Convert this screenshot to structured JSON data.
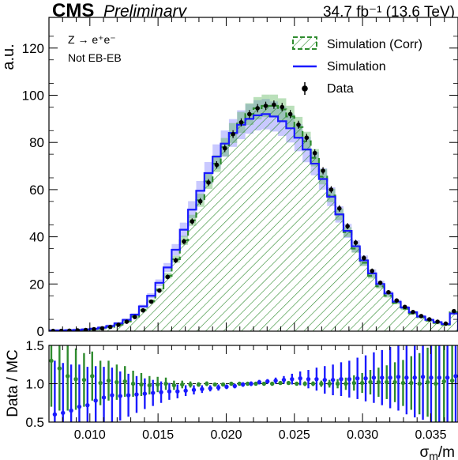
{
  "header": {
    "cms": "CMS",
    "preliminary": "Preliminary",
    "lumi": "34.7 fb⁻¹ (13.6 TeV)"
  },
  "annotations": {
    "process": "Z → e⁺e⁻",
    "category": "Not EB-EB"
  },
  "chart_data": [
    {
      "type": "histogram",
      "panel": "main",
      "ylabel": "a.u.",
      "xlabel": "",
      "xlim": [
        0.007,
        0.037
      ],
      "ylim": [
        0,
        133
      ],
      "yticks": [
        0,
        20,
        40,
        60,
        80,
        100,
        120
      ],
      "legend_position": "top-right",
      "bin_edges": [
        0.007,
        0.0076,
        0.0082,
        0.0088,
        0.0094,
        0.01,
        0.0106,
        0.0112,
        0.0118,
        0.0124,
        0.013,
        0.0136,
        0.0142,
        0.0148,
        0.0154,
        0.016,
        0.0166,
        0.0172,
        0.0178,
        0.0184,
        0.019,
        0.0196,
        0.0202,
        0.0208,
        0.0214,
        0.022,
        0.0226,
        0.0232,
        0.0238,
        0.0244,
        0.025,
        0.0256,
        0.0262,
        0.0268,
        0.0274,
        0.028,
        0.0286,
        0.0292,
        0.0298,
        0.0304,
        0.031,
        0.0316,
        0.0322,
        0.0328,
        0.0334,
        0.034,
        0.0346,
        0.0352,
        0.0358,
        0.0364,
        0.037
      ],
      "series": [
        {
          "name": "Simulation (Corr)",
          "style": "hatched",
          "color": "#2e8b2e",
          "values": [
            0.1,
            0.1,
            0.2,
            0.3,
            0.5,
            0.8,
            1.2,
            1.8,
            2.8,
            4.2,
            6.2,
            9.0,
            12.8,
            17.5,
            23.5,
            30.5,
            38.5,
            47.0,
            55.5,
            63.5,
            71.0,
            78.0,
            84.0,
            88.5,
            92.0,
            94.5,
            95.5,
            95.5,
            94.0,
            91.0,
            86.5,
            80.5,
            73.5,
            65.5,
            57.5,
            49.5,
            42.0,
            35.0,
            29.0,
            23.5,
            19.0,
            15.0,
            12.0,
            9.5,
            7.5,
            6.0,
            4.5,
            3.5,
            2.8,
            8.0
          ]
        },
        {
          "name": "Simulation",
          "style": "step",
          "color": "#1a1aff",
          "values": [
            0.3,
            0.3,
            0.4,
            0.5,
            0.7,
            1.0,
            1.5,
            2.2,
            3.3,
            4.8,
            7.0,
            10.5,
            15.0,
            20.5,
            27.0,
            34.5,
            43.0,
            51.5,
            59.5,
            67.0,
            74.0,
            79.5,
            84.0,
            87.5,
            90.0,
            91.5,
            92.0,
            91.0,
            89.0,
            86.0,
            82.0,
            77.0,
            71.0,
            64.5,
            57.0,
            49.5,
            42.5,
            36.0,
            30.0,
            24.5,
            20.0,
            16.0,
            12.5,
            10.0,
            8.0,
            6.2,
            4.8,
            3.8,
            3.0,
            7.5
          ]
        },
        {
          "name": "Data",
          "style": "points",
          "color": "#000000",
          "values": [
            0.1,
            0.1,
            0.2,
            0.3,
            0.5,
            0.8,
            1.2,
            1.8,
            2.7,
            4.0,
            6.0,
            8.8,
            12.5,
            17.2,
            23.0,
            30.0,
            38.0,
            46.5,
            55.0,
            63.0,
            70.5,
            77.5,
            83.5,
            88.5,
            92.0,
            94.5,
            95.5,
            96.0,
            95.0,
            92.0,
            87.5,
            82.0,
            75.5,
            68.0,
            60.0,
            52.0,
            44.5,
            37.5,
            31.0,
            25.5,
            20.5,
            16.5,
            13.0,
            10.3,
            8.1,
            6.4,
            5.0,
            4.0,
            3.2,
            8.5
          ]
        }
      ]
    },
    {
      "type": "ratio",
      "panel": "ratio",
      "ylabel": "Data / MC",
      "xlabel": "σm/m",
      "xlim": [
        0.007,
        0.037
      ],
      "ylim": [
        0.5,
        1.5
      ],
      "yticks": [
        0.5,
        1.0,
        1.5
      ],
      "xticks": [
        0.01,
        0.015,
        0.02,
        0.025,
        0.03,
        0.035
      ],
      "reference_line": 1.0,
      "series": [
        {
          "name": "Simulation (Corr)",
          "color": "#2e8b2e",
          "values": [
            1.3,
            1.2,
            1.1,
            1.06,
            1.05,
            1.1,
            1.01,
            1.04,
            1.02,
            1.03,
            1.0,
            0.99,
            0.98,
            0.99,
            1.0,
            0.98,
            0.99,
            0.99,
            0.99,
            1.0,
            0.99,
            0.99,
            1.0,
            1.0,
            1.0,
            1.0,
            1.0,
            1.0,
            1.01,
            1.01,
            1.0,
            1.0,
            1.0,
            1.0,
            1.0,
            1.0,
            1.0,
            1.01,
            1.01,
            1.02,
            1.02,
            1.02,
            1.02,
            1.01,
            1.01,
            1.0,
            1.02,
            1.0,
            1.03,
            1.04
          ],
          "errors": [
            0.6,
            0.55,
            0.45,
            0.4,
            0.35,
            0.32,
            0.29,
            0.26,
            0.23,
            0.2,
            0.17,
            0.15,
            0.12,
            0.1,
            0.08,
            0.06,
            0.05,
            0.04,
            0.03,
            0.03,
            0.02,
            0.02,
            0.02,
            0.02,
            0.02,
            0.02,
            0.02,
            0.02,
            0.02,
            0.02,
            0.02,
            0.03,
            0.03,
            0.04,
            0.05,
            0.06,
            0.08,
            0.1,
            0.13,
            0.16,
            0.19,
            0.22,
            0.26,
            0.3,
            0.35,
            0.4,
            0.45,
            0.5,
            0.55,
            0.6
          ]
        },
        {
          "name": "Simulation",
          "color": "#1a1aff",
          "values": [
            0.6,
            0.62,
            0.65,
            0.7,
            0.72,
            0.78,
            0.82,
            0.85,
            0.84,
            0.85,
            0.86,
            0.87,
            0.88,
            0.89,
            0.9,
            0.9,
            0.91,
            0.92,
            0.93,
            0.94,
            0.95,
            0.96,
            0.97,
            0.99,
            1.0,
            1.02,
            1.03,
            1.04,
            1.05,
            1.06,
            1.07,
            1.06,
            1.06,
            1.05,
            1.05,
            1.06,
            1.06,
            1.07,
            1.07,
            1.08,
            1.08,
            1.08,
            1.09,
            1.08,
            1.08,
            1.09,
            1.08,
            1.08,
            1.08,
            1.1
          ],
          "errors": [
            0.7,
            0.65,
            0.6,
            0.55,
            0.5,
            0.45,
            0.4,
            0.36,
            0.32,
            0.28,
            0.24,
            0.2,
            0.17,
            0.14,
            0.11,
            0.09,
            0.07,
            0.06,
            0.05,
            0.04,
            0.04,
            0.03,
            0.03,
            0.03,
            0.03,
            0.03,
            0.03,
            0.04,
            0.05,
            0.07,
            0.09,
            0.12,
            0.15,
            0.18,
            0.2,
            0.22,
            0.24,
            0.27,
            0.3,
            0.33,
            0.36,
            0.4,
            0.44,
            0.48,
            0.52,
            0.56,
            0.6,
            0.64,
            0.68,
            0.7
          ]
        }
      ]
    }
  ]
}
